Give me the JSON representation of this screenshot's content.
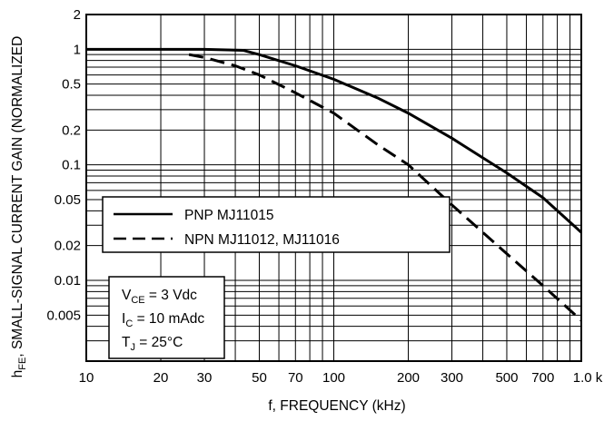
{
  "chart_data": {
    "type": "line",
    "title": "",
    "xlabel": "f, FREQUENCY (kHz)",
    "ylabel": {
      "symbol_main": "h",
      "symbol_sub": "FE",
      "rest": ", SMALL-SIGNAL CURRENT GAIN (NORMALIZED"
    },
    "x_scale": "log",
    "y_scale": "log",
    "xlim": [
      10,
      1000
    ],
    "ylim": [
      0.002,
      2
    ],
    "grid": true,
    "x_ticks": [
      {
        "value": 10,
        "label": "10"
      },
      {
        "value": 20,
        "label": "20"
      },
      {
        "value": 30,
        "label": "30"
      },
      {
        "value": 50,
        "label": "50"
      },
      {
        "value": 70,
        "label": "70"
      },
      {
        "value": 100,
        "label": "100"
      },
      {
        "value": 200,
        "label": "200"
      },
      {
        "value": 300,
        "label": "300"
      },
      {
        "value": 500,
        "label": "500"
      },
      {
        "value": 700,
        "label": "700"
      },
      {
        "value": 1000,
        "label": "1.0 k"
      }
    ],
    "y_ticks": [
      {
        "value": 2,
        "label": "2"
      },
      {
        "value": 1,
        "label": "1"
      },
      {
        "value": 0.5,
        "label": "0.5"
      },
      {
        "value": 0.2,
        "label": "0.2"
      },
      {
        "value": 0.1,
        "label": "0.1"
      },
      {
        "value": 0.05,
        "label": "0.05"
      },
      {
        "value": 0.02,
        "label": "0.02"
      },
      {
        "value": 0.01,
        "label": "0.01"
      },
      {
        "value": 0.005,
        "label": "0.005"
      }
    ],
    "series": [
      {
        "name": "PNP MJ11015",
        "style": "solid",
        "x": [
          10,
          20,
          30,
          43,
          50,
          70,
          100,
          150,
          200,
          300,
          500,
          700,
          1000
        ],
        "y": [
          1.0,
          1.0,
          1.0,
          0.98,
          0.9,
          0.72,
          0.55,
          0.38,
          0.28,
          0.17,
          0.085,
          0.052,
          0.026
        ]
      },
      {
        "name": "NPN MJ11012, MJ11016",
        "style": "dashed",
        "x": [
          26,
          30,
          40,
          50,
          70,
          100,
          150,
          200,
          300,
          500,
          700,
          1000
        ],
        "y": [
          0.9,
          0.85,
          0.72,
          0.6,
          0.42,
          0.28,
          0.15,
          0.1,
          0.045,
          0.017,
          0.009,
          0.0045
        ]
      }
    ],
    "legend": {
      "placement": "center-left",
      "entries": [
        "PNP MJ11015",
        "NPN MJ11012, MJ11016"
      ]
    },
    "annotations": [
      {
        "main": "V",
        "sub": "CE",
        "rest": " = 3 Vdc"
      },
      {
        "main": "I",
        "sub": "C",
        "rest": " = 10 mAdc"
      },
      {
        "main": "T",
        "sub": "J",
        "rest": " = 25°C"
      }
    ],
    "colors": {
      "line": "#000000",
      "grid": "#000000",
      "background": "#ffffff"
    }
  }
}
